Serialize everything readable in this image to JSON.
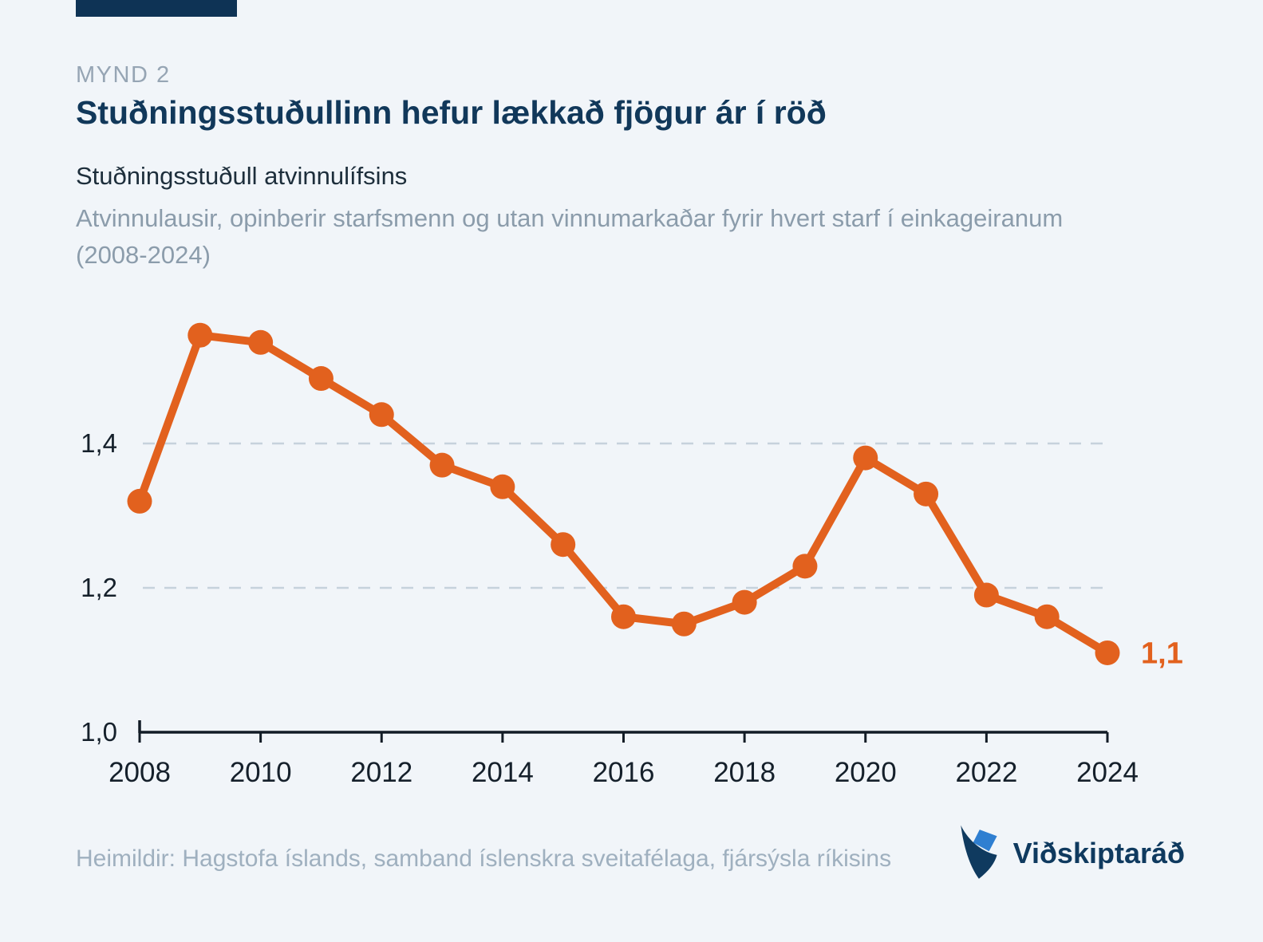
{
  "brand": {
    "navy": "#0e3355",
    "title_navy": "#11385a",
    "orange": "#e2611e",
    "grid_color": "#c6d2dc",
    "axis_color": "#121c26",
    "logo_text": "Viðskiptaráð",
    "logo_blue": "#2f7fd1"
  },
  "header": {
    "kicker": "MYND 2",
    "title": "Stuðningsstuðullinn hefur lækkað fjögur ár í röð",
    "subtitle_bold": "Stuðningsstuðull atvinnulífsins",
    "subtitle": "Atvinnulausir, opinberir starfsmenn og utan vinnumarkaðar fyrir hvert starf í einkageiranum (2008-2024)"
  },
  "chart_data": {
    "type": "line",
    "title": "Stuðningsstuðull atvinnulífsins",
    "x": [
      2008,
      2009,
      2010,
      2011,
      2012,
      2013,
      2014,
      2015,
      2016,
      2017,
      2018,
      2019,
      2020,
      2021,
      2022,
      2023,
      2024
    ],
    "values": [
      1.32,
      1.55,
      1.54,
      1.49,
      1.44,
      1.37,
      1.34,
      1.26,
      1.16,
      1.15,
      1.18,
      1.23,
      1.38,
      1.33,
      1.19,
      1.16,
      1.11
    ],
    "end_label": "1,1",
    "line_color": "#e2611e",
    "xticks": [
      2008,
      2010,
      2012,
      2014,
      2016,
      2018,
      2020,
      2022,
      2024
    ],
    "yticks": [
      {
        "value": 1.0,
        "label": "1,0",
        "grid": false
      },
      {
        "value": 1.2,
        "label": "1,2",
        "grid": true
      },
      {
        "value": 1.4,
        "label": "1,4",
        "grid": true
      }
    ],
    "ylim": [
      1.0,
      1.6
    ],
    "grid": "dashed horizontal at 1.2 and 1.4",
    "legend": "none",
    "xlabel": "",
    "ylabel": ""
  },
  "footer": {
    "source": "Heimildir: Hagstofa íslands, samband íslenskra sveitafélaga, fjársýsla ríkisins"
  }
}
